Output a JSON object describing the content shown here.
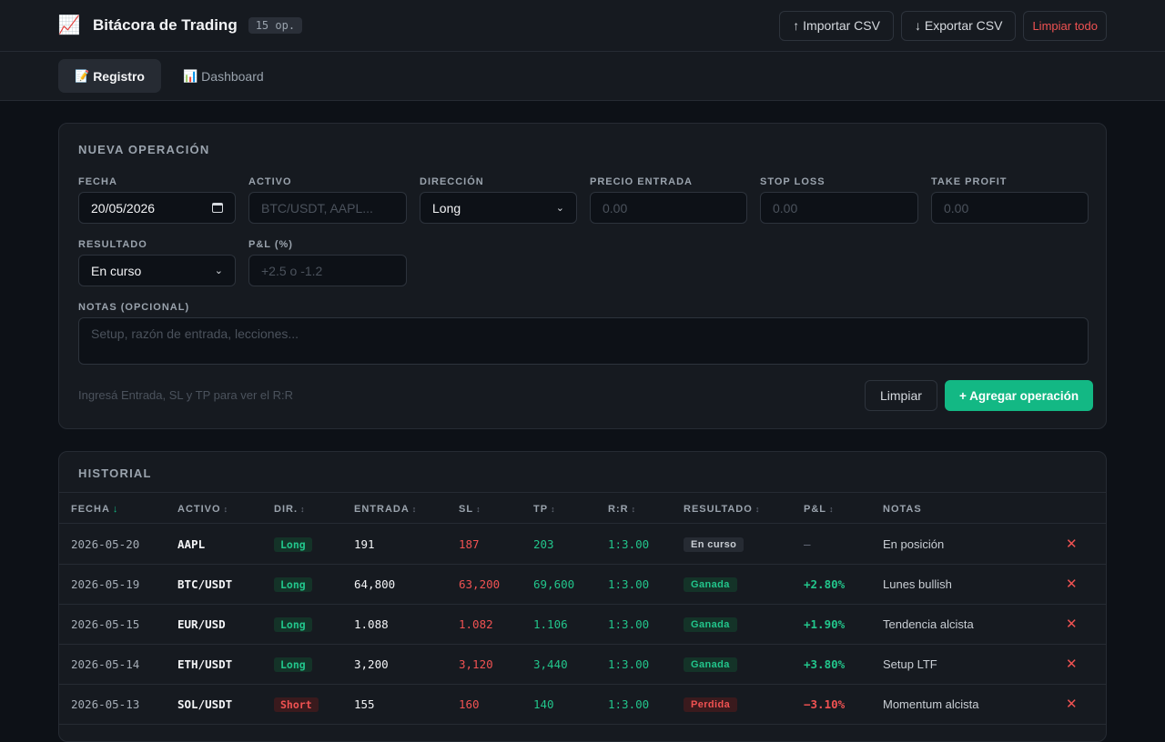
{
  "header": {
    "app_icon": "chart-increasing-emoji",
    "title": "Bitácora de Trading",
    "count_badge": "15 op.",
    "import_label": "↑ Importar CSV",
    "export_label": "↓ Exportar CSV",
    "clear_all_label": "Limpiar todo"
  },
  "tabs": [
    {
      "icon": "📝",
      "label": "Registro",
      "active": true
    },
    {
      "icon": "📊",
      "label": "Dashboard",
      "active": false
    }
  ],
  "form": {
    "title": "NUEVA OPERACIÓN",
    "date_label": "FECHA",
    "date_value": "20/05/2026",
    "asset_label": "ACTIVO",
    "asset_placeholder": "BTC/USDT, AAPL...",
    "direction_label": "DIRECCIÓN",
    "direction_value": "Long",
    "entry_label": "PRECIO ENTRADA",
    "entry_placeholder": "0.00",
    "sl_label": "STOP LOSS",
    "sl_placeholder": "0.00",
    "tp_label": "TAKE PROFIT",
    "tp_placeholder": "0.00",
    "result_label": "RESULTADO",
    "result_value": "En curso",
    "pnl_label": "P&L (%)",
    "pnl_placeholder": "+2.5 o -1.2",
    "notes_label": "NOTAS (OPCIONAL)",
    "notes_placeholder": "Setup, razón de entrada, lecciones...",
    "hint": "Ingresá Entrada, SL y TP para ver el R:R",
    "clear_label": "Limpiar",
    "submit_label": "+ Agregar operación"
  },
  "history": {
    "title": "HISTORIAL",
    "columns": [
      {
        "label": "FECHA",
        "sort": "↓",
        "active": true
      },
      {
        "label": "ACTIVO",
        "sort": "↕",
        "active": false
      },
      {
        "label": "DIR.",
        "sort": "↕",
        "active": false
      },
      {
        "label": "ENTRADA",
        "sort": "↕",
        "active": false
      },
      {
        "label": "SL",
        "sort": "↕",
        "active": false
      },
      {
        "label": "TP",
        "sort": "↕",
        "active": false
      },
      {
        "label": "R:R",
        "sort": "↕",
        "active": false
      },
      {
        "label": "RESULTADO",
        "sort": "↕",
        "active": false
      },
      {
        "label": "P&L",
        "sort": "↕",
        "active": false
      },
      {
        "label": "NOTAS",
        "sort": "",
        "active": false
      }
    ],
    "rows": [
      {
        "date": "2026-05-20",
        "asset": "AAPL",
        "dir": "Long",
        "entry": "191",
        "sl": "187",
        "tp": "203",
        "rr": "1:3.00",
        "result": "En curso",
        "pnl": "—",
        "notes": "En posición"
      },
      {
        "date": "2026-05-19",
        "asset": "BTC/USDT",
        "dir": "Long",
        "entry": "64,800",
        "sl": "63,200",
        "tp": "69,600",
        "rr": "1:3.00",
        "result": "Ganada",
        "pnl": "+2.80%",
        "notes": "Lunes bullish"
      },
      {
        "date": "2026-05-15",
        "asset": "EUR/USD",
        "dir": "Long",
        "entry": "1.088",
        "sl": "1.082",
        "tp": "1.106",
        "rr": "1:3.00",
        "result": "Ganada",
        "pnl": "+1.90%",
        "notes": "Tendencia alcista"
      },
      {
        "date": "2026-05-14",
        "asset": "ETH/USDT",
        "dir": "Long",
        "entry": "3,200",
        "sl": "3,120",
        "tp": "3,440",
        "rr": "1:3.00",
        "result": "Ganada",
        "pnl": "+3.80%",
        "notes": "Setup LTF"
      },
      {
        "date": "2026-05-13",
        "asset": "SOL/USDT",
        "dir": "Short",
        "entry": "155",
        "sl": "160",
        "tp": "140",
        "rr": "1:3.00",
        "result": "Perdida",
        "pnl": "−3.10%",
        "notes": "Momentum alcista"
      }
    ],
    "delete_icon": "✕"
  },
  "colors": {
    "accent": "#13b884",
    "danger": "#f05252",
    "background": "#0d1117",
    "card": "#161a20"
  }
}
